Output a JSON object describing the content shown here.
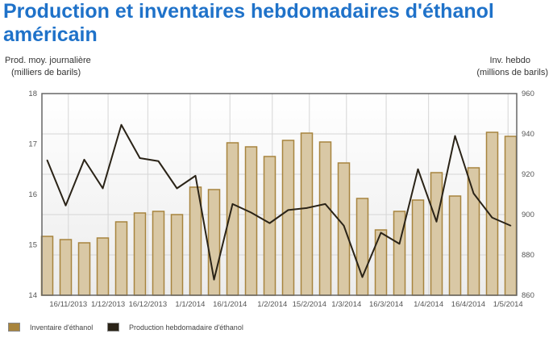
{
  "title": "Production et inventaires hebdomadaires d'éthanol américain",
  "colors": {
    "bar_fill": "#d9c8a5",
    "bar_stroke": "#a7843e",
    "line": "#2a2317",
    "title": "#1f72c9"
  },
  "chart_data": {
    "type": "bar+line",
    "title": "Production et inventaires hebdomadaires d'éthanol américain",
    "ylabel_left": [
      "Prod. moy. journalière",
      "(milliers de barils)"
    ],
    "ylabel_right": [
      "Inv. hebdo",
      "(millions de barils)"
    ],
    "ylim_left": [
      14,
      18
    ],
    "yticks_left": [
      "18",
      "17",
      "16",
      "15",
      "14"
    ],
    "ylim_right": [
      860,
      960
    ],
    "yticks_right": [
      "960",
      "940",
      "920",
      "900",
      "880",
      "860"
    ],
    "start_date": "8/11/2013",
    "interval_days": 7,
    "xticks": [
      "16/11/2013",
      "1/12/2013",
      "16/12/2013",
      "1/1/2014",
      "16/1/2014",
      "1/2/2014",
      "15/2/2014",
      "1/3/2014",
      "16/3/2014",
      "1/4/2014",
      "16/4/2014",
      "1/5/2014"
    ],
    "grid": true,
    "legend_position": "bottom-left",
    "series": [
      {
        "name": "Inventaire d'éthanol",
        "type": "bar",
        "axis": "right",
        "values": [
          889.2,
          887.6,
          886,
          888.4,
          896.4,
          900.8,
          901.6,
          900,
          913.6,
          912.4,
          935.6,
          933.6,
          928.8,
          936.8,
          940.4,
          936,
          925.6,
          908,
          892.4,
          901.6,
          907.2,
          920.8,
          909.2,
          923.2,
          940.8,
          938.8
        ]
      },
      {
        "name": "Production hebdomadaire d'éthanol",
        "type": "line",
        "axis": "left",
        "values": [
          16.68,
          15.78,
          16.69,
          16.12,
          17.38,
          16.72,
          16.66,
          16.12,
          16.37,
          14.31,
          15.81,
          15.64,
          15.43,
          15.69,
          15.73,
          15.81,
          15.38,
          14.36,
          15.24,
          15.02,
          16.5,
          15.46,
          17.16,
          16.02,
          15.54,
          15.38
        ]
      }
    ]
  }
}
